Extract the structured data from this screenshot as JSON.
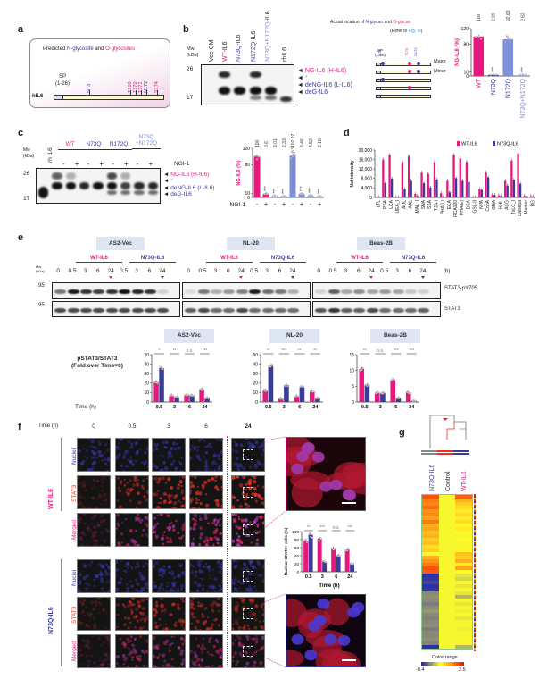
{
  "colors": {
    "wt": "#e8177d",
    "n73q": "#3a3a9a",
    "n172q": "#7d8fd6",
    "dbl": "#a9c0ec"
  },
  "panel_a": {
    "label": "a",
    "title_pre": "Predicted ",
    "title_n": "N-glycosite",
    "title_mid": " and ",
    "title_o": "O-glycosites",
    "sp": "SP",
    "sp_range": "(1-26)",
    "protein": "hIL6",
    "sites": [
      {
        "name": "N73",
        "type": "N"
      },
      {
        "name": "T166",
        "type": "O"
      },
      {
        "name": "T170",
        "type": "O"
      },
      {
        "name": "T171",
        "type": "O"
      },
      {
        "name": "N172",
        "type": "N"
      },
      {
        "name": "S174",
        "type": "O"
      }
    ]
  },
  "panel_b": {
    "label": "b",
    "mw": "Mw",
    "kda": "(kDa)",
    "mw_26": "26",
    "mw_17": "17",
    "lanes": [
      {
        "pre": "Vec CM",
        "post": "",
        "c": "#222"
      },
      {
        "pre": "WT",
        "post": "-IL6",
        "c": "#e8177d"
      },
      {
        "pre": "N73Q",
        "post": "-IL6",
        "c": "#3a3a9a"
      },
      {
        "pre": "N172Q",
        "post": "-IL6",
        "c": "#3a3a9a"
      },
      {
        "pre": "N73Q+N172Q",
        "post": "-IL6",
        "c": "#7d8fd6"
      },
      {
        "pre": "rh",
        "post": "IL6",
        "c": "#222"
      }
    ],
    "bands": {
      "H": [
        0,
        0.9,
        0,
        0.9,
        0,
        0
      ],
      "L": [
        0,
        1,
        1,
        1,
        1,
        0
      ],
      "deG": [
        0,
        0,
        0,
        0.5,
        0.6,
        0
      ],
      "rh": [
        0,
        0,
        0,
        0,
        0,
        0.85
      ]
    },
    "band_labels": {
      "ng": "NG-IL6",
      "h": "(H-IL6)",
      "star": "*",
      "deng": "deNG-IL6",
      "l": "(L-IL6)",
      "deg": "deG-IL6"
    },
    "schematic": {
      "title_pre": "Actual location of ",
      "title_n": "N-glycan",
      "title_mid": " and ",
      "title_o": "O-glycan",
      "refer_pre": "(Refer to ",
      "refer_link": "Fig. 6I",
      "refer_post": ")",
      "sp": "SP",
      "sp_range": "(1-26)",
      "sites": [
        "N73",
        "T170",
        "N172"
      ],
      "major": "Major",
      "minor": "Minor"
    }
  },
  "panel_c": {
    "label": "c",
    "mw": "Mw",
    "kda": "(kDa)",
    "mw_26": "26",
    "mw_17": "17",
    "rh": "rh IL6",
    "groups": [
      {
        "label": "WT",
        "c": "#e8177d"
      },
      {
        "label": "N73Q",
        "c": "#3a3a9a"
      },
      {
        "label": "N172Q",
        "c": "#3a3a9a"
      },
      {
        "label": "N73Q +N172Q",
        "c": "#7d8fd6"
      }
    ],
    "treat": [
      "-",
      "+",
      "-",
      "+",
      "-",
      "+",
      "-",
      "+"
    ],
    "ngi": "NGI-1",
    "bands": {
      "H": [
        0,
        0.65,
        0.3,
        0,
        0,
        0.75,
        0.3,
        0,
        0
      ],
      "L": [
        0,
        1,
        1,
        0.9,
        1,
        1,
        0.8,
        0.9,
        0.9
      ],
      "deG": [
        0,
        0,
        0,
        0,
        0,
        0.6,
        0.6,
        0.6,
        0.6
      ],
      "rh": [
        1,
        0,
        0,
        0,
        0,
        0,
        0,
        0,
        0
      ]
    },
    "band_labels": {
      "ng": "NG-IL6",
      "h": "(H-IL6)",
      "star": "*",
      "deng": "deNG-IL6",
      "l": "(L-IL6)",
      "deg": "deG-IL6"
    }
  },
  "panel_d": {
    "label": "d"
  },
  "panel_e": {
    "label": "e",
    "mw": "Mw",
    "kda": "(kDa)",
    "mw95": "95",
    "hours": "(h)",
    "times": [
      "0",
      "0.5",
      "3",
      "6",
      "24",
      "0.5",
      "3",
      "6",
      "24"
    ],
    "row1": "STAT3-pY705",
    "row2": "STAT3",
    "wt": "WT-IL6",
    "n73q": "N73Q-IL6",
    "cells": [
      {
        "name": "AS2-Vec",
        "p": [
          0.55,
          0.95,
          0.85,
          0.8,
          0.85,
          1,
          0.9,
          0.85,
          0.15
        ],
        "t": [
          0.75,
          0.75,
          0.75,
          0.75,
          0.75,
          0.75,
          0.75,
          0.75,
          0.75
        ]
      },
      {
        "name": "NL-20",
        "p": [
          0.1,
          0.55,
          0.3,
          0.4,
          0.5,
          0.95,
          0.6,
          0.55,
          0.3
        ],
        "t": [
          0.65,
          0.75,
          0.6,
          0.6,
          0.75,
          0.6,
          0.6,
          0.6,
          0.6
        ]
      },
      {
        "name": "Beas-2B",
        "p": [
          0.15,
          0.65,
          0.35,
          0.45,
          0.35,
          0.4,
          0.35,
          0.2,
          0.15
        ],
        "t": [
          0.7,
          0.85,
          0.65,
          0.65,
          0.75,
          0.6,
          0.6,
          0.6,
          0.65
        ]
      }
    ],
    "ylabel1": "pSTAT3/STAT3",
    "ylabel2": "(Fold over Time=0)",
    "time_label": "Time (h)"
  },
  "panel_f": {
    "label": "f",
    "time_label": "Time (h)",
    "times": [
      "0",
      "0.5",
      "3",
      "6",
      "24"
    ],
    "wt": "WT-IL6",
    "n73q": "N73Q-IL6",
    "channels": [
      "Nuclei",
      "STAT3",
      "Merged"
    ]
  },
  "panel_g": {
    "label": "g",
    "cols": [
      {
        "t": "N73Q-IL6",
        "c": "#3a3a9a"
      },
      {
        "t": "Control",
        "c": "#222"
      },
      {
        "t": "WT-IL6",
        "c": "#e8177d"
      }
    ],
    "color_range": "Color range",
    "cmin": "-0.4",
    "cmax": "2.5",
    "heatmap": [
      [
        2.3,
        1,
        2.2
      ],
      [
        2.0,
        1,
        1.6
      ],
      [
        1.9,
        1,
        1.4
      ],
      [
        2.1,
        1,
        1.3
      ],
      [
        1.8,
        1,
        1.2
      ],
      [
        1.9,
        1,
        1.3
      ],
      [
        1.7,
        1,
        1.2
      ],
      [
        2.0,
        1,
        1.3
      ],
      [
        1.6,
        1,
        1.1
      ],
      [
        1.7,
        1,
        1.2
      ],
      [
        1.5,
        1,
        1.1
      ],
      [
        1.6,
        1,
        1.0
      ],
      [
        1.4,
        1,
        1.1
      ],
      [
        1.5,
        1,
        1.0
      ],
      [
        1.3,
        1,
        1.0
      ],
      [
        1.4,
        1,
        1.1
      ],
      [
        1.0,
        1,
        1.5
      ],
      [
        1.6,
        1,
        1.4
      ],
      [
        1.8,
        1,
        1.6
      ],
      [
        2.0,
        1,
        1.2
      ],
      [
        2.3,
        1,
        1.7
      ],
      [
        2.2,
        1,
        1.1
      ],
      [
        -0.35,
        1,
        0.9
      ],
      [
        -0.3,
        1,
        0.8
      ],
      [
        -0.2,
        1,
        1.0
      ],
      [
        -0.35,
        1,
        0.9
      ],
      [
        -0.3,
        1,
        1.0
      ],
      [
        0.3,
        1,
        0.9
      ],
      [
        0.35,
        1,
        0.6
      ],
      [
        0.3,
        1,
        1.0
      ],
      [
        0.2,
        1,
        0.9
      ],
      [
        0.3,
        1,
        1.0
      ],
      [
        0.4,
        1,
        0.95
      ],
      [
        0.3,
        1,
        1.0
      ],
      [
        0.25,
        1,
        0.9
      ],
      [
        0.3,
        1,
        1.0
      ],
      [
        0.35,
        1,
        1.0
      ],
      [
        0.2,
        1,
        0.95
      ],
      [
        0.3,
        1,
        1.0
      ],
      [
        0.3,
        1,
        1.0
      ],
      [
        0.35,
        1,
        1.0
      ],
      [
        0.25,
        1,
        1.0
      ],
      [
        -0.35,
        1,
        0.6
      ]
    ]
  },
  "chart_data": [
    {
      "id": "b",
      "type": "bar",
      "ylabel": "NG-IL6 (%)",
      "ylim": [
        0,
        120
      ],
      "yticks": [
        0,
        10,
        80,
        120
      ],
      "categories": [
        "WT",
        "N73Q",
        "N172Q",
        "N73Q+N172Q"
      ],
      "cat_colors": [
        "#e8177d",
        "#3a3a9a",
        "#3a3a9a",
        "#7d8fd6"
      ],
      "series": [
        {
          "name": "NG-IL6",
          "colors": [
            "#e8177d",
            "#3a3a9a",
            "#7d8fd6",
            "#a9c0ec"
          ],
          "values": [
            100,
            2.89,
            92.63,
            2.63
          ]
        }
      ],
      "value_labels": [
        "100",
        "2.89",
        "92.63",
        "2.63"
      ],
      "stats": [
        "",
        "***",
        "*",
        "***"
      ]
    },
    {
      "id": "c",
      "type": "bar",
      "ylabel": "NG-IL6 (%)",
      "ylim": [
        0,
        120
      ],
      "yticks": [
        0,
        10,
        80,
        120
      ],
      "categories": [
        "-",
        "+",
        "-",
        "+",
        "-",
        "+",
        "-",
        "+"
      ],
      "xrow_label": "NGI-1",
      "series": [
        {
          "name": "NG-IL6",
          "colors": [
            "#e8177d",
            "#e8177d",
            "#3a3a9a",
            "#3a3a9a",
            "#7d8fd6",
            "#7d8fd6",
            "#a9c0ec",
            "#a9c0ec"
          ],
          "values": [
            100,
            8.6,
            3.01,
            2.33,
            102.22,
            8.46,
            4.52,
            2.16
          ]
        }
      ],
      "value_labels": [
        "100",
        "8.6",
        "3.01",
        "2.33",
        "102.22",
        "8.46",
        "4.52",
        "2.16"
      ],
      "stats": [
        "",
        "***",
        "***",
        "***",
        "n.s.",
        "***",
        "***",
        "***"
      ]
    },
    {
      "id": "d",
      "type": "bar",
      "ylabel": "Net intensity",
      "ylim": [
        0,
        20000
      ],
      "yticks": [
        0,
        4000,
        8000,
        12000,
        16000,
        20000
      ],
      "ytick_labels": [
        "0",
        "4,000",
        "8,000",
        "12,000",
        "16,000",
        "20,000"
      ],
      "categories": [
        "LTL",
        "PSA",
        "LCA",
        "UEA_I",
        "AOL",
        "AAL",
        "MAL_I",
        "SNA",
        "SSA",
        "TJA-I",
        "PHA(L)",
        "ECA",
        "RCA120",
        "PHA(E)",
        "DSA",
        "GSL-II",
        "NPA",
        "ConA",
        "GNA",
        "HHL",
        "ACG",
        "TxLC_I",
        "Calsepa",
        "Marker",
        "BG"
      ],
      "legend": "top-right",
      "series": [
        {
          "name": "WT-IL6",
          "color": "#e8177d",
          "values": [
            200,
            16000,
            18000,
            200,
            15000,
            17500,
            1500,
            10500,
            10000,
            14800,
            1800,
            7000,
            18000,
            16500,
            15000,
            100,
            3500,
            10500,
            1200,
            900,
            7000,
            15500,
            18500,
            700,
            600
          ]
        },
        {
          "name": "N73Q-IL6",
          "color": "#3a3a9a",
          "values": [
            100,
            6000,
            8000,
            100,
            3500,
            7000,
            600,
            6000,
            4200,
            7600,
            200,
            2200,
            8200,
            7000,
            6500,
            50,
            3200,
            8500,
            1100,
            600,
            5000,
            7500,
            5800,
            600,
            400
          ]
        }
      ]
    },
    {
      "id": "e1",
      "type": "bar",
      "title": "AS2-Vec",
      "ylim": [
        0,
        50
      ],
      "yticks": [
        0,
        10,
        20,
        30,
        40,
        50
      ],
      "categories": [
        "0.5",
        "3",
        "6",
        "24"
      ],
      "stats": [
        "*",
        "**",
        "n.s.",
        "***"
      ],
      "series": [
        {
          "name": "WT-IL6",
          "color": "#e8177d",
          "values": [
            21,
            7,
            7.5,
            13.5
          ]
        },
        {
          "name": "N73Q-IL6",
          "color": "#3a3a9a",
          "values": [
            36,
            5,
            7,
            4
          ]
        }
      ]
    },
    {
      "id": "e2",
      "type": "bar",
      "title": "NL-20",
      "ylim": [
        0,
        50
      ],
      "yticks": [
        0,
        10,
        20,
        30,
        40,
        50
      ],
      "categories": [
        "0.5",
        "3",
        "6",
        "24"
      ],
      "stats": [
        "**",
        "***",
        "**",
        "**"
      ],
      "series": [
        {
          "name": "WT-IL6",
          "color": "#e8177d",
          "values": [
            12,
            3.5,
            6,
            11
          ]
        },
        {
          "name": "N73Q-IL6",
          "color": "#3a3a9a",
          "values": [
            38,
            18,
            15.5,
            4
          ]
        }
      ]
    },
    {
      "id": "e3",
      "type": "bar",
      "title": "Beas-2B",
      "ylim": [
        0,
        15
      ],
      "yticks": [
        0,
        5,
        10,
        15
      ],
      "categories": [
        "0.5",
        "3",
        "6",
        "24"
      ],
      "stats": [
        "**",
        "n.s.",
        "***",
        "***"
      ],
      "series": [
        {
          "name": "WT-IL6",
          "color": "#e8177d",
          "values": [
            10.5,
            3,
            7,
            3
          ]
        },
        {
          "name": "N73Q-IL6",
          "color": "#3a3a9a",
          "values": [
            5.3,
            2.8,
            1.2,
            0.3
          ]
        }
      ]
    },
    {
      "id": "f",
      "type": "bar",
      "ylabel": "Nuclear STAT3+ cells (%)",
      "xlabel": "Time (h)",
      "ylim": [
        0,
        100
      ],
      "yticks": [
        0,
        20,
        40,
        60,
        80,
        100
      ],
      "categories": [
        "0.5",
        "3",
        "6",
        "24"
      ],
      "stats": [
        "**",
        "***",
        "n.s.",
        "***"
      ],
      "series": [
        {
          "name": "WT-IL6",
          "color": "#e8177d",
          "values": [
            77,
            83,
            59,
            55
          ]
        },
        {
          "name": "N73Q-IL6",
          "color": "#3a3a9a",
          "values": [
            92,
            25,
            41,
            21
          ]
        }
      ]
    }
  ]
}
